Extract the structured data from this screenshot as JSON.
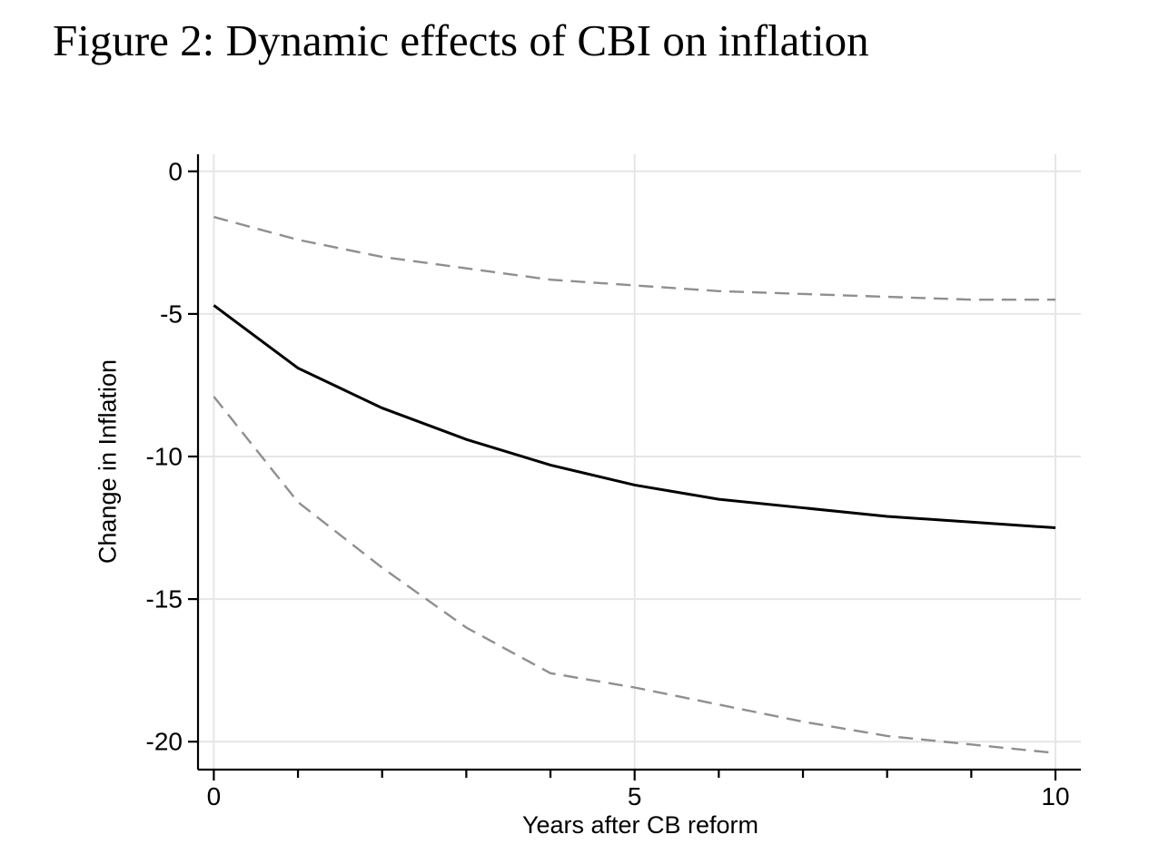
{
  "figure": {
    "title": "Figure 2: Dynamic effects of CBI on inflation"
  },
  "axes": {
    "x": {
      "label": "Years after CB reform",
      "ticks": [
        {
          "value": 0,
          "label": "0"
        },
        {
          "value": 5,
          "label": "5"
        },
        {
          "value": 10,
          "label": "10"
        }
      ],
      "minor_ticks": [
        1,
        2,
        3,
        4,
        6,
        7,
        8,
        9
      ],
      "range": [
        0,
        10
      ]
    },
    "y": {
      "label": "Change in Inflation",
      "ticks": [
        {
          "value": 0,
          "label": "0"
        },
        {
          "value": -5,
          "label": "-5"
        },
        {
          "value": -10,
          "label": "-10"
        },
        {
          "value": -15,
          "label": "-15"
        },
        {
          "value": -20,
          "label": "-20"
        }
      ],
      "range": [
        -21,
        0.6
      ]
    }
  },
  "colors": {
    "solid_line": "#000000",
    "dashed_line": "#8f8f8f",
    "gridline": "#e6e6e6",
    "axis": "#000000",
    "background": "#ffffff",
    "text": "#000000"
  },
  "chart_data": {
    "type": "line",
    "title": "Figure 2: Dynamic effects of CBI on inflation",
    "xlabel": "Years after CB reform",
    "ylabel": "Change in Inflation",
    "x": [
      0,
      1,
      2,
      3,
      4,
      5,
      6,
      7,
      8,
      9,
      10
    ],
    "series": [
      {
        "name": "point_estimate",
        "style": "solid",
        "color": "#000000",
        "values": [
          -4.7,
          -6.9,
          -8.3,
          -9.4,
          -10.3,
          -11.0,
          -11.5,
          -11.8,
          -12.1,
          -12.3,
          -12.5
        ]
      },
      {
        "name": "ci_upper_95",
        "style": "dashed",
        "color": "#8f8f8f",
        "values": [
          -1.6,
          -2.4,
          -3.0,
          -3.4,
          -3.8,
          -4.0,
          -4.2,
          -4.3,
          -4.4,
          -4.5,
          -4.5
        ]
      },
      {
        "name": "ci_lower_95",
        "style": "dashed",
        "color": "#8f8f8f",
        "values": [
          -7.9,
          -11.6,
          -13.9,
          -16.0,
          -17.6,
          -18.1,
          -18.7,
          -19.3,
          -19.8,
          -20.1,
          -20.4
        ]
      }
    ],
    "xlim": [
      0,
      10
    ],
    "ylim": [
      -20.5,
      0
    ],
    "grid": "light gray gridlines at labeled x and y ticks",
    "legend": "none"
  }
}
